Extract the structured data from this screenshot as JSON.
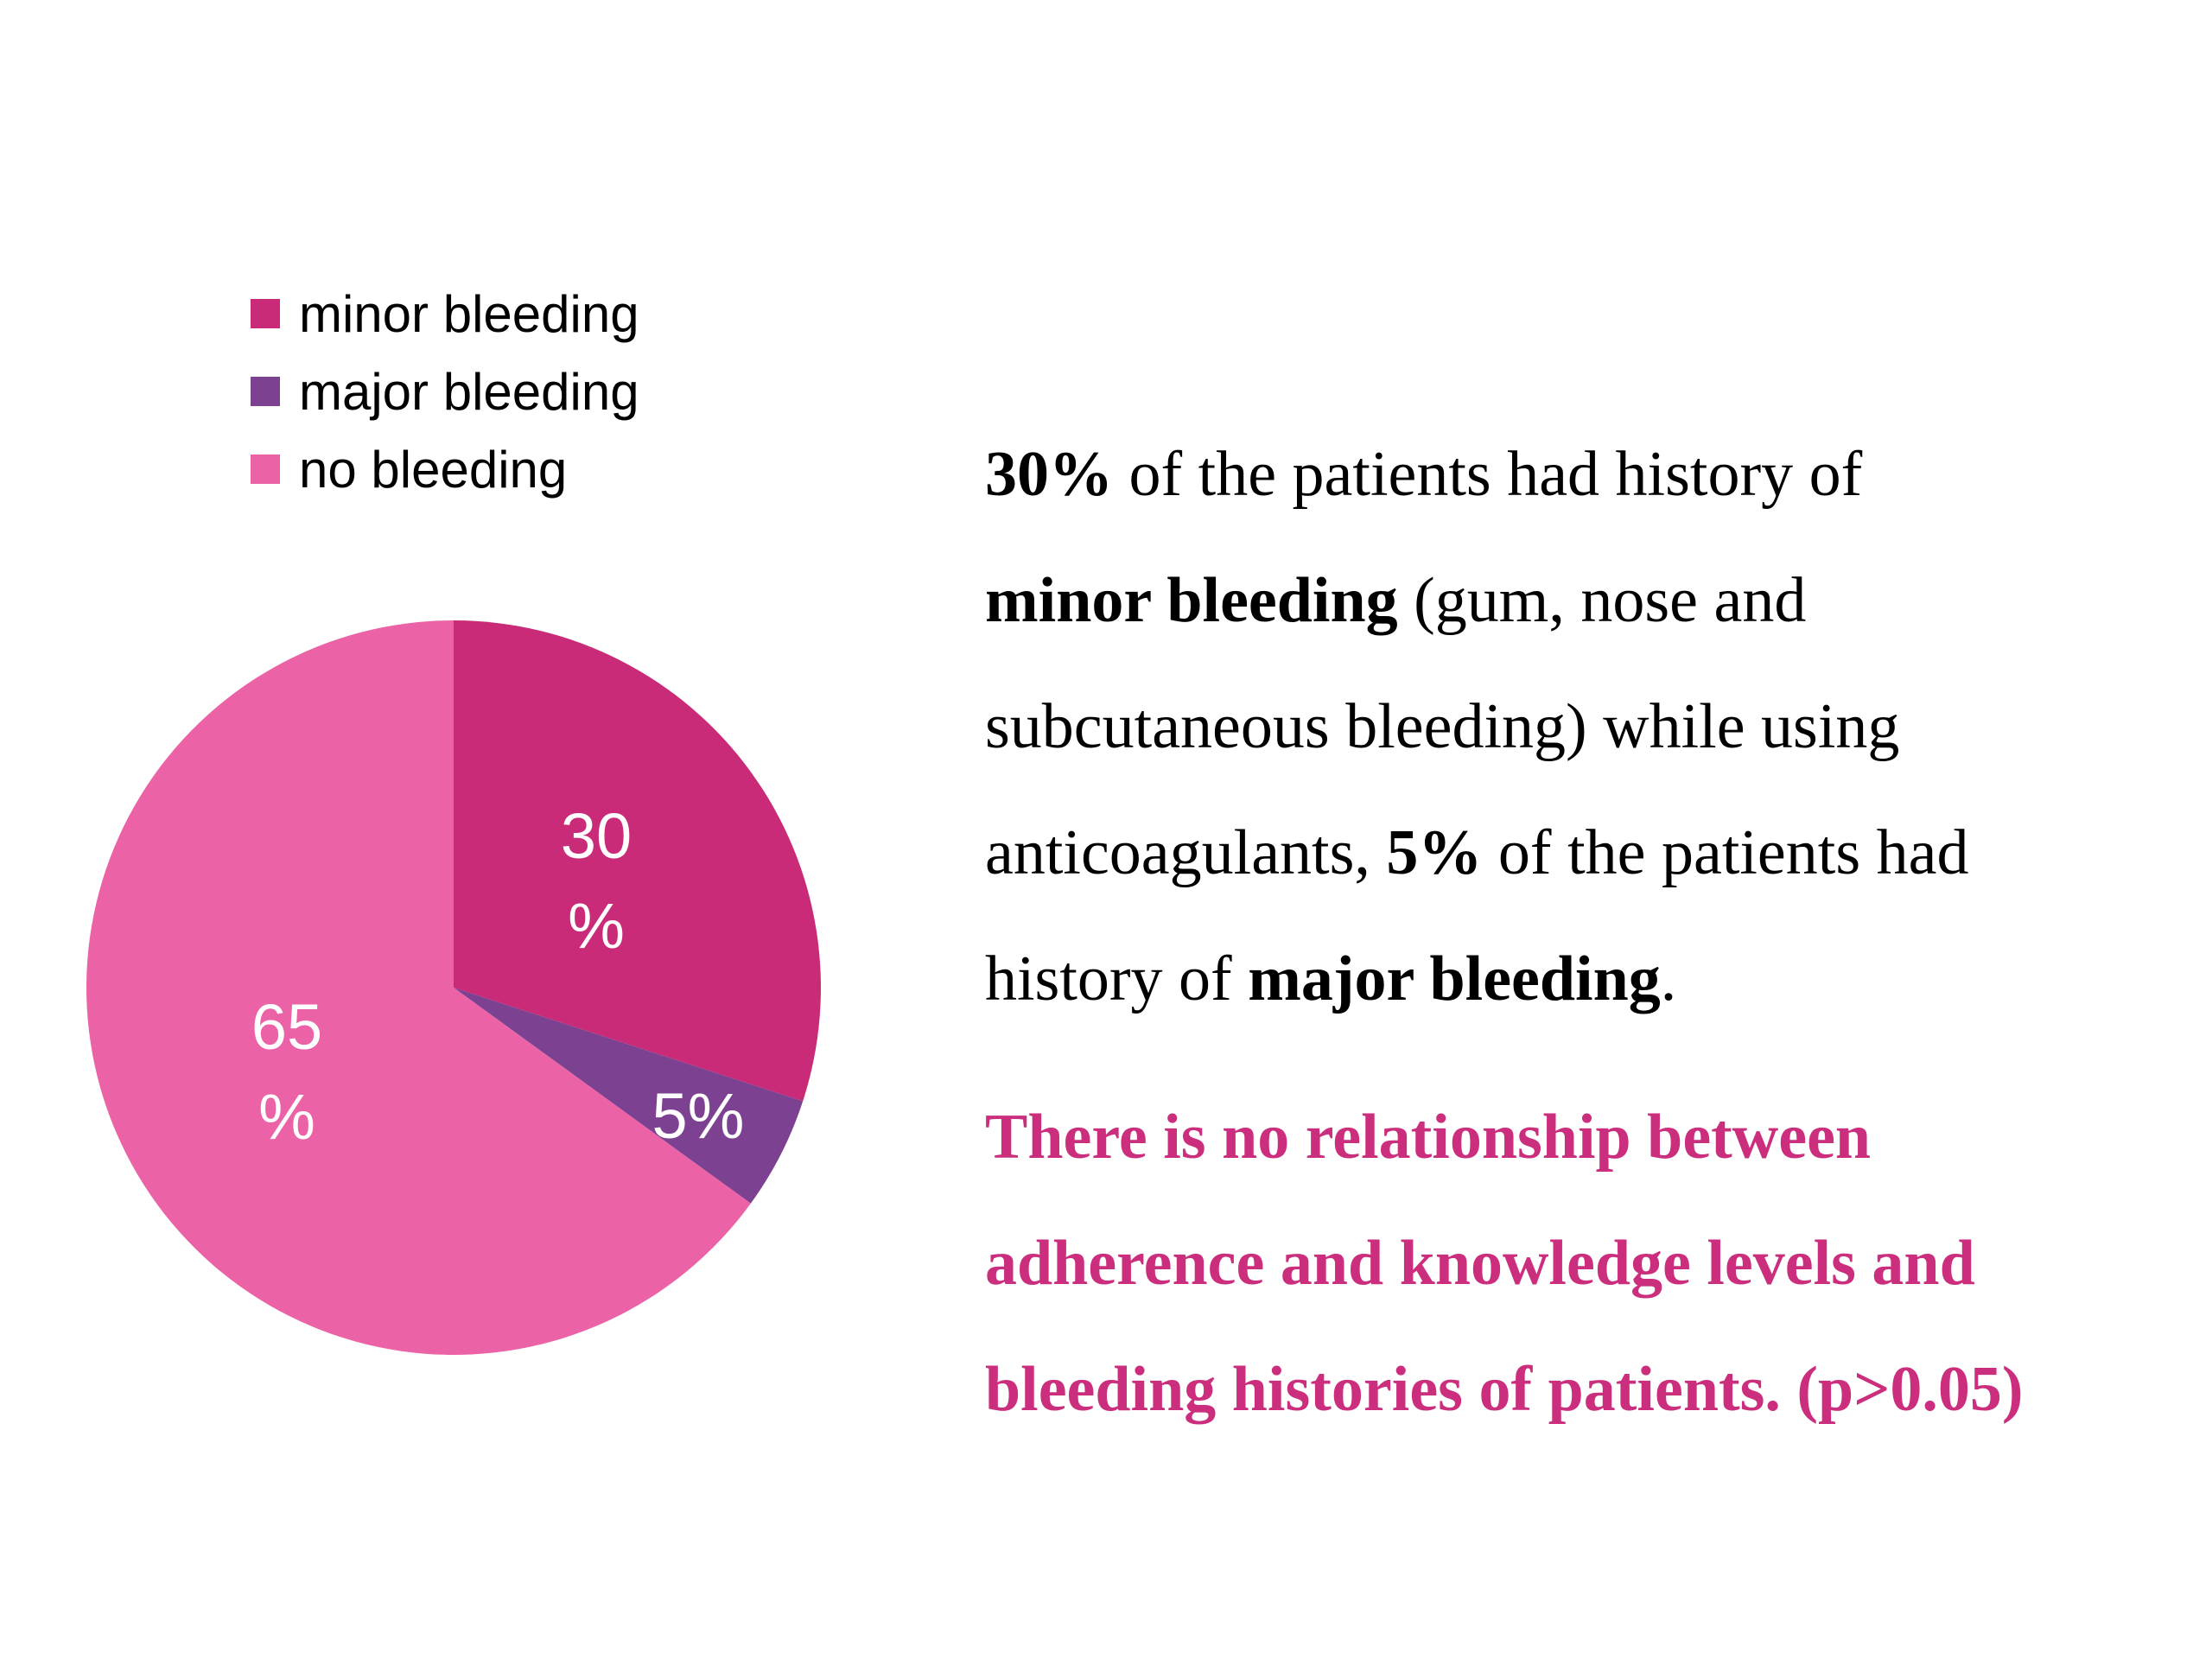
{
  "chart_data": {
    "type": "pie",
    "categories": [
      "minor bleeding",
      "major bleeding",
      "no bleeding"
    ],
    "values": [
      30,
      5,
      65
    ],
    "data_labels": [
      "30\n%",
      "5%",
      "65\n%"
    ],
    "colors": [
      "#c92b78",
      "#7d4191",
      "#ec62a6"
    ],
    "legend_position": "top-left",
    "title": ""
  },
  "legend": {
    "items": [
      {
        "label": "minor bleeding",
        "color": "#c92b78"
      },
      {
        "label": "major bleeding",
        "color": "#7d4191"
      },
      {
        "label": "no bleeding",
        "color": "#ec62a6"
      }
    ]
  },
  "labels": {
    "minor_l1": "30",
    "minor_l2": "%",
    "major": "5%",
    "none_l1": "65",
    "none_l2": "%"
  },
  "text": {
    "p1_bold_pct": "30%",
    "p1_a": " of the patients had history of",
    "p1_bold_minor": "minor bleeding",
    "p1_b": " (gum, nose and",
    "p1_c": "subcutaneous bleeding) while using",
    "p1_d": "anticoagulants, ",
    "p1_bold_pct2": "5%",
    "p1_e": " of the patients had",
    "p1_f": "history of ",
    "p1_bold_major": "major bleeding",
    "p1_g": ".",
    "conclusion_l1": "There is no relationship between",
    "conclusion_l2": "adherence and knowledge levels and",
    "conclusion_l3": "bleeding histories of patients. (p>0.05)"
  },
  "colors": {
    "accent": "#cc2e7e"
  }
}
